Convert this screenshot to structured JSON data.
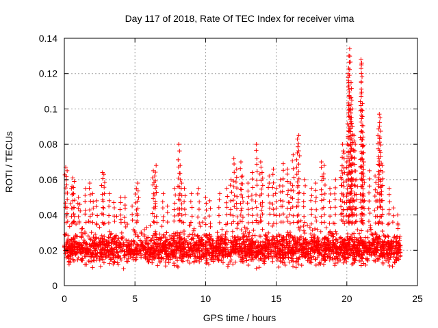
{
  "chart_data": {
    "type": "scatter",
    "title": "Day 117 of 2018, Rate Of TEC Index for receiver vima",
    "xlabel": "GPS time / hours",
    "ylabel": "ROTI / TECUs",
    "xlim": [
      0,
      25
    ],
    "ylim": [
      0,
      0.14
    ],
    "x_ticks": [
      0,
      5,
      10,
      15,
      20,
      25
    ],
    "x_tick_labels": [
      "0",
      "5",
      "10",
      "15",
      "20",
      "25"
    ],
    "y_ticks": [
      0,
      0.02,
      0.04,
      0.06,
      0.08,
      0.1,
      0.12,
      0.14
    ],
    "y_tick_labels": [
      "0",
      "0.02",
      "0.04",
      "0.06",
      "0.08",
      "0.1",
      "0.12",
      "0.14"
    ],
    "grid": true,
    "marker": "+",
    "color": "#ff0000",
    "x_range_data": [
      0,
      23.8
    ],
    "band": {
      "x": [
        0,
        23.8
      ],
      "y": [
        0.01,
        0.03
      ]
    },
    "series": [
      {
        "name": "ROTI",
        "points": [
          [
            0.1,
            0.067
          ],
          [
            0.2,
            0.065
          ],
          [
            0.5,
            0.055
          ],
          [
            0.6,
            0.061
          ],
          [
            0.7,
            0.059
          ],
          [
            1.0,
            0.05
          ],
          [
            1.1,
            0.046
          ],
          [
            1.5,
            0.055
          ],
          [
            1.8,
            0.058
          ],
          [
            2.0,
            0.052
          ],
          [
            2.3,
            0.048
          ],
          [
            2.7,
            0.064
          ],
          [
            2.8,
            0.063
          ],
          [
            3.2,
            0.052
          ],
          [
            3.5,
            0.047
          ],
          [
            4.0,
            0.05
          ],
          [
            4.3,
            0.05
          ],
          [
            4.8,
            0.045
          ],
          [
            5.1,
            0.055
          ],
          [
            5.2,
            0.058
          ],
          [
            6.3,
            0.065
          ],
          [
            6.4,
            0.062
          ],
          [
            6.5,
            0.068
          ],
          [
            7.0,
            0.052
          ],
          [
            7.3,
            0.045
          ],
          [
            7.8,
            0.055
          ],
          [
            8.1,
            0.08
          ],
          [
            8.2,
            0.068
          ],
          [
            8.3,
            0.058
          ],
          [
            8.5,
            0.055
          ],
          [
            9.0,
            0.052
          ],
          [
            9.5,
            0.055
          ],
          [
            10.0,
            0.05
          ],
          [
            10.3,
            0.048
          ],
          [
            11.0,
            0.052
          ],
          [
            11.5,
            0.055
          ],
          [
            11.8,
            0.06
          ],
          [
            12.0,
            0.072
          ],
          [
            12.2,
            0.066
          ],
          [
            12.5,
            0.07
          ],
          [
            12.6,
            0.062
          ],
          [
            13.0,
            0.058
          ],
          [
            13.3,
            0.064
          ],
          [
            13.6,
            0.08
          ],
          [
            13.9,
            0.07
          ],
          [
            14.0,
            0.064
          ],
          [
            14.5,
            0.062
          ],
          [
            14.8,
            0.066
          ],
          [
            15.0,
            0.055
          ],
          [
            15.3,
            0.06
          ],
          [
            15.5,
            0.069
          ],
          [
            15.8,
            0.066
          ],
          [
            16.0,
            0.058
          ],
          [
            16.2,
            0.074
          ],
          [
            16.5,
            0.083
          ],
          [
            16.6,
            0.085
          ],
          [
            17.0,
            0.06
          ],
          [
            17.5,
            0.055
          ],
          [
            17.8,
            0.058
          ],
          [
            18.2,
            0.07
          ],
          [
            18.4,
            0.068
          ],
          [
            18.8,
            0.055
          ],
          [
            19.2,
            0.06
          ],
          [
            19.6,
            0.065
          ],
          [
            19.7,
            0.08
          ],
          [
            19.8,
            0.075
          ],
          [
            20.0,
            0.07
          ],
          [
            20.1,
            0.12
          ],
          [
            20.15,
            0.13
          ],
          [
            20.2,
            0.134
          ],
          [
            20.25,
            0.1
          ],
          [
            20.3,
            0.115
          ],
          [
            20.35,
            0.105
          ],
          [
            20.4,
            0.09
          ],
          [
            20.5,
            0.085
          ],
          [
            20.6,
            0.08
          ],
          [
            20.7,
            0.06
          ],
          [
            21.0,
            0.128
          ],
          [
            21.05,
            0.126
          ],
          [
            21.1,
            0.103
          ],
          [
            21.15,
            0.084
          ],
          [
            21.2,
            0.07
          ],
          [
            21.6,
            0.065
          ],
          [
            22.0,
            0.062
          ],
          [
            22.2,
            0.085
          ],
          [
            22.3,
            0.097
          ],
          [
            22.35,
            0.095
          ],
          [
            22.4,
            0.073
          ],
          [
            22.5,
            0.068
          ],
          [
            23.0,
            0.055
          ],
          [
            23.3,
            0.044
          ],
          [
            23.6,
            0.04
          ]
        ]
      }
    ]
  }
}
